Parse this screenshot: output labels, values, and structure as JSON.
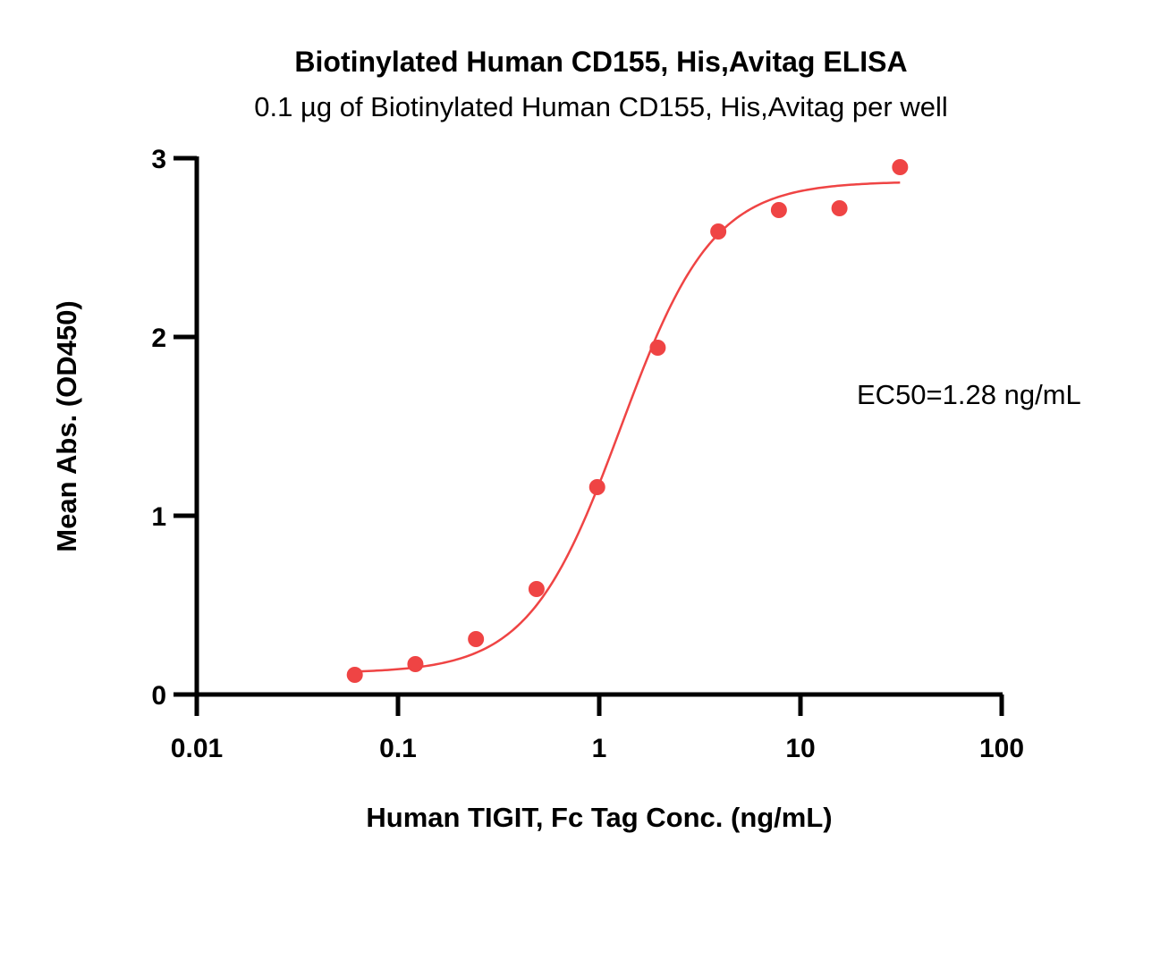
{
  "chart_data": {
    "type": "scatter",
    "title": "Biotinylated Human CD155, His,Avitag ELISA",
    "subtitle": "0.1 µg of Biotinylated Human CD155, His,Avitag per well",
    "xlabel": "Human TIGIT, Fc Tag Conc. (ng/mL)",
    "ylabel": "Mean Abs. (OD450)",
    "x_scale": "log",
    "xlim": [
      0.01,
      100
    ],
    "ylim": [
      0,
      3
    ],
    "x_ticks": [
      0.01,
      0.1,
      1,
      10,
      100
    ],
    "x_tick_labels": [
      "0.01",
      "0.1",
      "1",
      "10",
      "100"
    ],
    "y_ticks": [
      0,
      1,
      2,
      3
    ],
    "y_tick_labels": [
      "0",
      "1",
      "2",
      "3"
    ],
    "grid": false,
    "annotation": "EC50=1.28 ng/mL",
    "color": "#ef4444",
    "series": [
      {
        "x": [
          0.061,
          0.122,
          0.244,
          0.488,
          0.977,
          1.953,
          3.906,
          7.813,
          15.625,
          31.25
        ],
        "y": [
          0.11,
          0.17,
          0.31,
          0.59,
          1.16,
          1.94,
          2.59,
          2.71,
          2.72,
          2.95
        ]
      }
    ],
    "fit": {
      "type": "4PL",
      "bottom": 0.12,
      "top": 2.87,
      "ec50": 1.28,
      "hill": 1.9,
      "x_range": [
        0.061,
        31.25
      ]
    }
  }
}
